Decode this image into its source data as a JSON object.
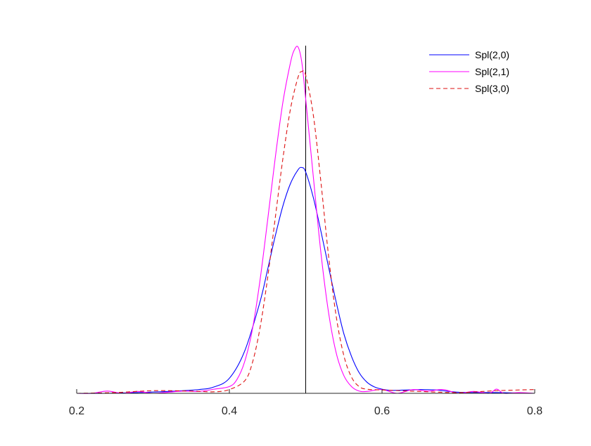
{
  "chart_data": {
    "type": "line",
    "title": "",
    "xlabel": "",
    "ylabel": "",
    "xlim": [
      0.2,
      0.8
    ],
    "ylim": [
      0,
      9.2
    ],
    "x_ticks": [
      0.2,
      0.4,
      0.6,
      0.8
    ],
    "x_tick_labels": [
      "0.2",
      "0.4",
      "0.6",
      "0.8"
    ],
    "y_axis_visible": false,
    "grid": false,
    "legend_position": "top-right",
    "reference_line_x": 0.5,
    "series": [
      {
        "name": "Spl(2,0)",
        "color": "#0000ff",
        "dash": "solid",
        "x": [
          0.2,
          0.24,
          0.28,
          0.32,
          0.36,
          0.38,
          0.4,
          0.42,
          0.44,
          0.45,
          0.46,
          0.47,
          0.48,
          0.49,
          0.495,
          0.5,
          0.51,
          0.52,
          0.53,
          0.54,
          0.55,
          0.56,
          0.57,
          0.58,
          0.59,
          0.6,
          0.61,
          0.62,
          0.65,
          0.67,
          0.7,
          0.75,
          0.8
        ],
        "y": [
          0.0,
          0.0,
          0.02,
          0.05,
          0.1,
          0.17,
          0.4,
          1.12,
          2.42,
          3.28,
          4.17,
          4.97,
          5.57,
          5.94,
          6.0,
          5.88,
          5.2,
          4.3,
          3.35,
          2.42,
          1.58,
          0.98,
          0.55,
          0.3,
          0.17,
          0.11,
          0.08,
          0.08,
          0.1,
          0.09,
          0.03,
          0.02,
          0.0
        ]
      },
      {
        "name": "Spl(2,1)",
        "color": "#ff00ff",
        "dash": "solid",
        "x": [
          0.2,
          0.22,
          0.24,
          0.26,
          0.28,
          0.3,
          0.32,
          0.34,
          0.36,
          0.38,
          0.4,
          0.41,
          0.42,
          0.43,
          0.44,
          0.45,
          0.46,
          0.47,
          0.48,
          0.485,
          0.49,
          0.495,
          0.5,
          0.51,
          0.52,
          0.53,
          0.54,
          0.55,
          0.56,
          0.57,
          0.58,
          0.6,
          0.62,
          0.64,
          0.66,
          0.68,
          0.7,
          0.72,
          0.74,
          0.75,
          0.76,
          0.78,
          0.8
        ],
        "y": [
          0.0,
          0.0,
          0.06,
          0.0,
          0.05,
          0.0,
          0.03,
          0.06,
          0.05,
          0.11,
          0.18,
          0.37,
          0.84,
          1.68,
          2.98,
          4.58,
          6.24,
          7.72,
          8.78,
          9.12,
          9.2,
          8.78,
          7.82,
          5.75,
          3.72,
          2.14,
          1.07,
          0.47,
          0.18,
          0.06,
          0.05,
          0.1,
          0.0,
          0.1,
          0.06,
          0.1,
          0.0,
          0.05,
          0.0,
          0.11,
          0.0,
          0.02,
          0.0
        ]
      },
      {
        "name": "Spl(3,0)",
        "color": "#dd1111",
        "dash": "dashed",
        "x": [
          0.2,
          0.25,
          0.3,
          0.35,
          0.38,
          0.4,
          0.42,
          0.43,
          0.44,
          0.45,
          0.46,
          0.47,
          0.48,
          0.49,
          0.495,
          0.5,
          0.51,
          0.52,
          0.53,
          0.54,
          0.55,
          0.56,
          0.57,
          0.58,
          0.6,
          0.65,
          0.7,
          0.75,
          0.8
        ],
        "y": [
          0.0,
          0.02,
          0.07,
          0.06,
          0.04,
          0.1,
          0.33,
          0.8,
          1.72,
          3.05,
          4.64,
          6.22,
          7.55,
          8.4,
          8.55,
          8.45,
          7.39,
          5.6,
          3.64,
          2.04,
          1.0,
          0.43,
          0.18,
          0.11,
          0.09,
          0.05,
          0.02,
          0.07,
          0.1
        ]
      }
    ]
  }
}
